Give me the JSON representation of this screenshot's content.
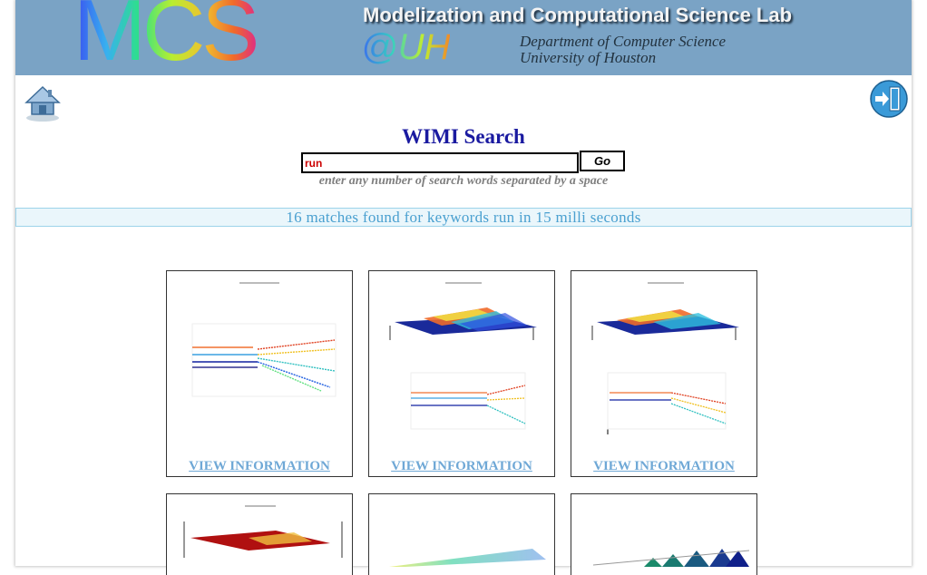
{
  "banner": {
    "logo_text": "MCS",
    "logo_suffix": "@UH",
    "lab_title": "Modelization and Computational Science Lab",
    "department": "Department of Computer Science",
    "university": "University of Houston"
  },
  "nav": {
    "home_icon": "home-icon",
    "logout_icon": "logout-icon"
  },
  "search": {
    "title": "WIMI Search",
    "query": "run",
    "go_label": "Go",
    "hint": "enter any number of search words separated by a space"
  },
  "results": {
    "summary": "16 matches found for keywords run in 15 milli seconds"
  },
  "cards": [
    {
      "link": "VIEW INFORMATION"
    },
    {
      "link": "VIEW INFORMATION"
    },
    {
      "link": "VIEW INFORMATION"
    }
  ],
  "colors": {
    "banner": "#7aa3c5",
    "title": "#1a1aa0",
    "results_text": "#4aa0d0",
    "link": "#6fa8d6",
    "query_text": "#cc0000"
  }
}
